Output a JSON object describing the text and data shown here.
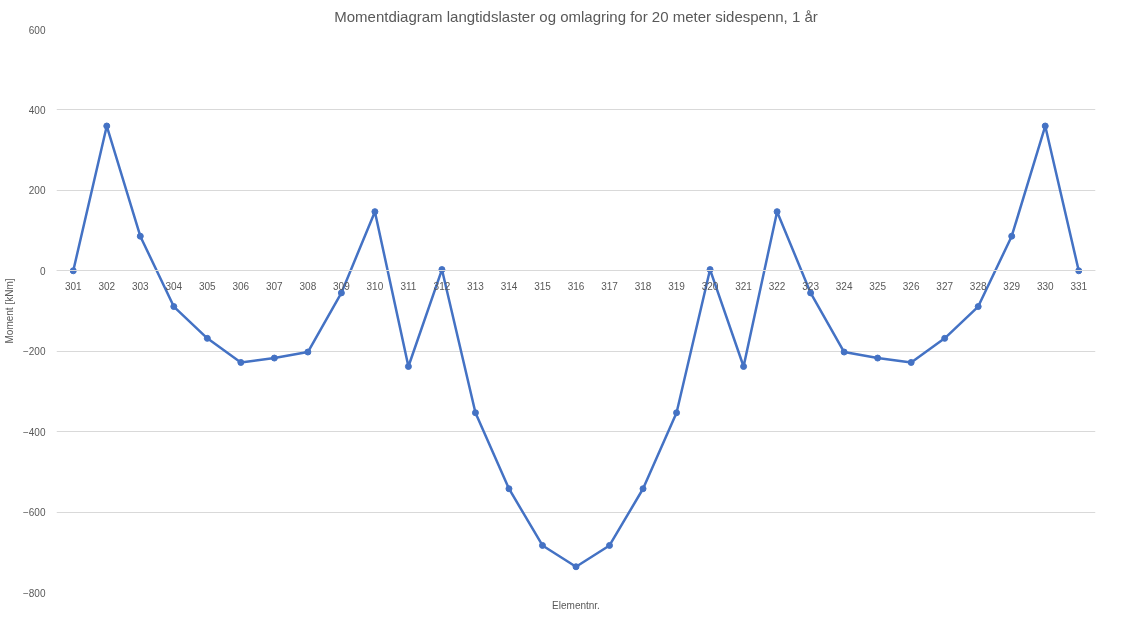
{
  "chart_data": {
    "type": "line",
    "title": "Momentdiagram langtidslaster og omlagring for 20 meter sidespenn, 1 år",
    "xlabel": "Elementnr.",
    "ylabel": "Moment [kNm]",
    "categories": [
      "301",
      "302",
      "303",
      "304",
      "305",
      "306",
      "307",
      "308",
      "309",
      "310",
      "311",
      "312",
      "313",
      "314",
      "315",
      "316",
      "317",
      "318",
      "319",
      "320",
      "321",
      "322",
      "323",
      "324",
      "325",
      "326",
      "327",
      "328",
      "329",
      "330",
      "331"
    ],
    "series": [
      {
        "color": "#4472c4",
        "values": [
          0,
          360,
          86,
          -89,
          -168,
          -228,
          -217,
          -202,
          -55,
          147,
          -238,
          3,
          -353,
          -542,
          -683,
          -736,
          -683,
          -542,
          -353,
          3,
          -238,
          147,
          -55,
          -202,
          -217,
          -228,
          -168,
          -89,
          86,
          360,
          0
        ]
      }
    ],
    "ylim": [
      -800,
      600
    ],
    "yticks": [
      -800,
      -600,
      -400,
      -200,
      0,
      200,
      400,
      600
    ],
    "grid": "y",
    "marker": "circle",
    "line_style": "solid"
  }
}
